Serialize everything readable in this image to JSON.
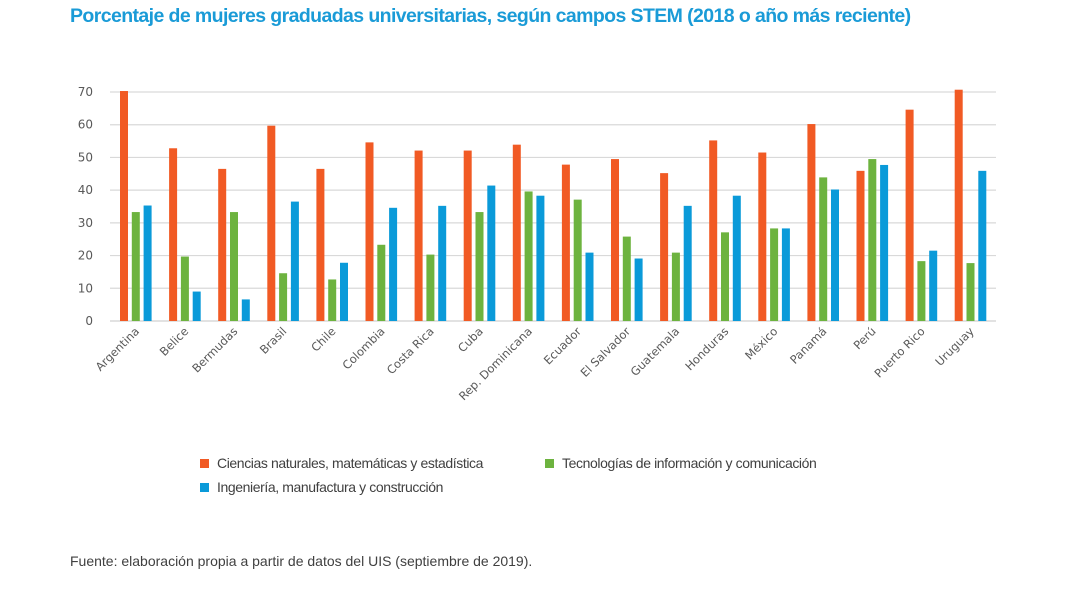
{
  "chart_data": {
    "type": "bar",
    "title": "Porcentaje de mujeres graduadas universitarias, según campos STEM (2018 o año más reciente)",
    "xlabel": "",
    "ylabel": "",
    "ylim": [
      0,
      70
    ],
    "yticks": [
      "0",
      "10",
      "20",
      "30",
      "40",
      "50",
      "60",
      "70"
    ],
    "ytick_values": [
      0,
      10,
      20,
      30,
      40,
      50,
      60,
      70
    ],
    "grid": true,
    "legend_position": "bottom",
    "categories": [
      "Argentina",
      "Belice",
      "Bermudas",
      "Brasil",
      "Chile",
      "Colombia",
      "Costa Rica",
      "Cuba",
      "Rep. Dominicana",
      "Ecuador",
      "El Salvador",
      "Guatemala",
      "Honduras",
      "México",
      "Panamá",
      "Perú",
      "Puerto Rico",
      "Uruguay"
    ],
    "series": [
      {
        "name": "Ciencias naturales, matemáticas y estadística",
        "color": "#f15a24",
        "values": [
          70.3,
          52.8,
          46.5,
          59.7,
          46.5,
          54.6,
          52.1,
          52.1,
          53.9,
          47.8,
          49.5,
          45.2,
          55.2,
          51.5,
          60.2,
          45.9,
          64.6,
          70.7
        ]
      },
      {
        "name": "Tecnologías de información y comunicación",
        "color": "#6db33f",
        "values": [
          33.3,
          19.7,
          33.3,
          14.6,
          12.7,
          23.3,
          20.3,
          33.3,
          39.6,
          37.1,
          25.8,
          20.9,
          27.1,
          28.3,
          43.9,
          49.5,
          18.3,
          17.7
        ]
      },
      {
        "name": "Ingeniería, manufactura y construcción",
        "color": "#0a9ad9",
        "values": [
          35.3,
          9.0,
          6.6,
          36.5,
          17.8,
          34.6,
          35.2,
          41.4,
          38.3,
          20.9,
          19.1,
          35.2,
          38.3,
          28.3,
          40.2,
          47.7,
          21.5,
          45.9
        ]
      }
    ]
  },
  "source": "Fuente: elaboración propia a partir de datos del UIS (septiembre de 2019).",
  "colors": {
    "title": "#1a9bd7",
    "grid": "#d9d9d9",
    "text": "#595959"
  }
}
